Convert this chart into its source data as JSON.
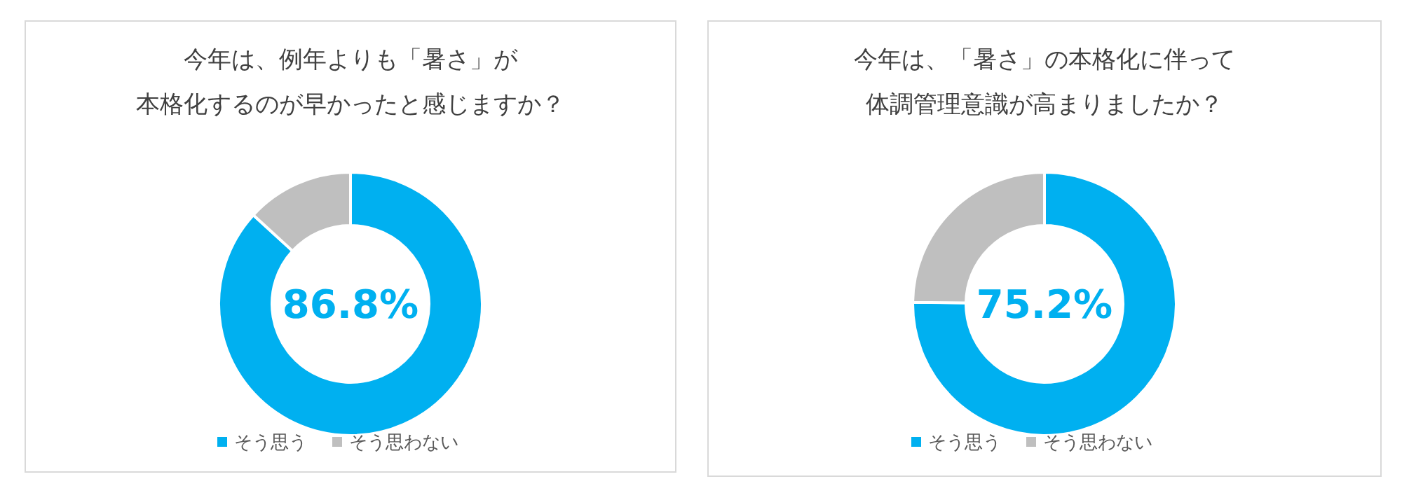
{
  "chart_data": [
    {
      "type": "donut",
      "title": "今年は、例年よりも「暑さ」が",
      "subtitle": "本格化するのが早かったと感じますか？",
      "categories": [
        "そう思う",
        "そう思わない"
      ],
      "values": [
        86.8,
        13.2
      ],
      "colors": [
        "#00b0f0",
        "#bfbfbf"
      ],
      "legend": "bottom",
      "annotations": [
        "86.8%"
      ]
    },
    {
      "type": "donut",
      "title": "今年は、「暑さ」の本格化に伴って",
      "subtitle": "体調管理意識が高まりましたか？",
      "categories": [
        "そう思う",
        "そう思わない"
      ],
      "values": [
        75.2,
        24.8
      ],
      "colors": [
        "#00b0f0",
        "#bfbfbf"
      ],
      "legend": "bottom",
      "annotations": [
        "75.2%"
      ]
    }
  ]
}
